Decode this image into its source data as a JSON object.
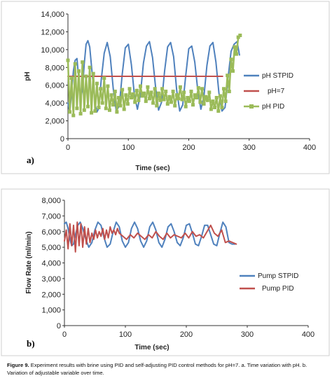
{
  "chart_data": [
    {
      "type": "line",
      "panel_label": "a)",
      "title": "",
      "xlabel": "Time (sec)",
      "ylabel": "pH",
      "xlim": [
        0,
        400
      ],
      "ylim": [
        0,
        14000
      ],
      "xticks": [
        0,
        100,
        200,
        300,
        400
      ],
      "yticks": [
        "0",
        "2,000",
        "4,000",
        "6,000",
        "8,000",
        "10,000",
        "12,000",
        "14,000"
      ],
      "ytick_values": [
        0,
        2000,
        4000,
        6000,
        8000,
        10000,
        12000,
        14000
      ],
      "legend_position": "right",
      "grid": false,
      "series": [
        {
          "name": "pH STPID",
          "color": "#4f81bd",
          "x": [
            0,
            3,
            6,
            9,
            12,
            15,
            18,
            21,
            24,
            27,
            30,
            33,
            36,
            40,
            45,
            48,
            51,
            55,
            60,
            65,
            70,
            75,
            80,
            85,
            90,
            95,
            100,
            105,
            110,
            115,
            120,
            125,
            130,
            135,
            140,
            145,
            150,
            155,
            160,
            165,
            170,
            175,
            180,
            185,
            190,
            195,
            200,
            205,
            210,
            215,
            220,
            225,
            230,
            235,
            240,
            245,
            250,
            255,
            260,
            265,
            270,
            275,
            280,
            284
          ],
          "y": [
            4000,
            3000,
            5200,
            7600,
            8800,
            9000,
            6600,
            4500,
            5500,
            8400,
            10600,
            11000,
            10300,
            7400,
            3900,
            3000,
            3400,
            6500,
            9600,
            10800,
            9200,
            5600,
            3100,
            3700,
            7300,
            10200,
            10600,
            8300,
            4900,
            3300,
            5000,
            8500,
            10400,
            10900,
            9100,
            5800,
            3200,
            4100,
            7600,
            10300,
            10800,
            9200,
            5400,
            3100,
            3800,
            7100,
            10100,
            10400,
            8600,
            5400,
            3300,
            4700,
            8200,
            10400,
            10800,
            8600,
            5100,
            3100,
            3500,
            6800,
            9800,
            10600,
            10900,
            9400
          ]
        },
        {
          "name": "pH=7",
          "color": "#c0504d",
          "x": [
            0,
            256
          ],
          "y": [
            7000,
            7000
          ]
        },
        {
          "name": "pH PID",
          "color": "#9bbb59",
          "x": [
            0,
            3,
            6,
            9,
            12,
            15,
            18,
            21,
            24,
            27,
            30,
            33,
            36,
            39,
            42,
            45,
            48,
            51,
            54,
            57,
            60,
            63,
            66,
            69,
            72,
            75,
            78,
            81,
            84,
            87,
            90,
            93,
            96,
            99,
            102,
            105,
            108,
            111,
            114,
            117,
            120,
            123,
            126,
            129,
            132,
            135,
            138,
            141,
            144,
            147,
            150,
            153,
            156,
            159,
            162,
            165,
            168,
            171,
            174,
            177,
            180,
            183,
            186,
            189,
            192,
            195,
            198,
            201,
            204,
            207,
            210,
            213,
            216,
            219,
            222,
            225,
            228,
            231,
            234,
            237,
            240,
            243,
            246,
            249,
            252,
            255,
            258,
            261,
            264,
            267,
            270,
            273,
            276,
            279,
            282,
            285
          ],
          "y": [
            8800,
            3000,
            6800,
            2600,
            8400,
            3400,
            7600,
            2800,
            8600,
            3200,
            7000,
            3600,
            8000,
            2900,
            7300,
            3100,
            6200,
            3500,
            5600,
            4000,
            6800,
            3400,
            5900,
            3200,
            4900,
            3800,
            5300,
            3000,
            4600,
            3700,
            5500,
            3300,
            4900,
            3900,
            5600,
            4600,
            5000,
            4100,
            5400,
            4300,
            5900,
            4800,
            5100,
            4200,
            5800,
            4500,
            5200,
            4000,
            5600,
            3700,
            5100,
            4300,
            5600,
            4400,
            5300,
            3900,
            4700,
            4100,
            5300,
            3700,
            4900,
            4500,
            5800,
            4400,
            5200,
            3600,
            4600,
            4200,
            5300,
            3800,
            4900,
            4600,
            5700,
            4100,
            5600,
            3900,
            4700,
            4300,
            5200,
            3300,
            4200,
            3500,
            4600,
            3100,
            4800,
            3500,
            5600,
            4200,
            7100,
            5300,
            8900,
            7600,
            10300,
            9500,
            11400,
            11600
          ]
        }
      ]
    },
    {
      "type": "line",
      "panel_label": "b)",
      "title": "",
      "xlabel": "Time (sec)",
      "ylabel": "Flow Rate (ml/min)",
      "xlim": [
        0,
        400
      ],
      "ylim": [
        0,
        8000
      ],
      "xticks": [
        0,
        100,
        200,
        300,
        400
      ],
      "yticks": [
        "0",
        "1,000",
        "2,000",
        "3,000",
        "4,000",
        "5,000",
        "6,000",
        "7,000",
        "8,000"
      ],
      "ytick_values": [
        0,
        1000,
        2000,
        3000,
        4000,
        5000,
        6000,
        7000,
        8000
      ],
      "legend_position": "right",
      "grid": false,
      "series": [
        {
          "name": "Pump STPID",
          "color": "#4f81bd",
          "x": [
            0,
            3,
            6,
            9,
            12,
            15,
            18,
            22,
            26,
            30,
            35,
            40,
            45,
            50,
            55,
            60,
            65,
            70,
            75,
            80,
            85,
            90,
            95,
            100,
            105,
            110,
            115,
            120,
            125,
            130,
            135,
            140,
            145,
            150,
            155,
            160,
            165,
            170,
            175,
            180,
            185,
            190,
            195,
            200,
            205,
            210,
            215,
            220,
            225,
            230,
            235,
            240,
            245,
            250,
            255,
            260,
            265,
            270,
            275,
            280
          ],
          "y": [
            6500,
            6600,
            6200,
            5500,
            5100,
            5200,
            5800,
            6400,
            6600,
            6200,
            5500,
            5000,
            5300,
            6100,
            6600,
            6400,
            5600,
            5000,
            5200,
            6000,
            6600,
            6300,
            5400,
            5000,
            5300,
            6200,
            6600,
            6200,
            5400,
            5000,
            5400,
            6300,
            6600,
            6100,
            5300,
            5000,
            5500,
            6300,
            6500,
            6000,
            5300,
            5100,
            5600,
            6400,
            6500,
            5900,
            5200,
            5100,
            5700,
            6400,
            6400,
            5800,
            5200,
            5100,
            5900,
            6600,
            6300,
            5300,
            5200,
            5200
          ]
        },
        {
          "name": "Pump PID",
          "color": "#c0504d",
          "x": [
            0,
            3,
            6,
            9,
            12,
            15,
            18,
            21,
            24,
            27,
            30,
            33,
            36,
            39,
            42,
            45,
            48,
            51,
            54,
            57,
            60,
            63,
            66,
            69,
            72,
            75,
            78,
            81,
            84,
            87,
            90,
            96,
            102,
            108,
            114,
            120,
            126,
            132,
            138,
            144,
            150,
            156,
            162,
            168,
            174,
            180,
            186,
            192,
            198,
            204,
            210,
            216,
            222,
            228,
            234,
            240,
            246,
            252,
            258,
            264,
            270,
            276,
            282
          ],
          "y": [
            5400,
            6100,
            4900,
            6500,
            5100,
            6400,
            4700,
            6600,
            5100,
            6500,
            5000,
            6300,
            5200,
            6200,
            5300,
            5900,
            5500,
            6100,
            5600,
            6000,
            5700,
            6200,
            5500,
            6100,
            5600,
            6300,
            5900,
            6100,
            5800,
            6200,
            5900,
            5700,
            5500,
            5800,
            5600,
            5900,
            5700,
            5500,
            5800,
            5600,
            6000,
            5700,
            5500,
            5900,
            5600,
            5800,
            5700,
            5600,
            5900,
            5600,
            6000,
            5700,
            5800,
            5600,
            6000,
            6400,
            5900,
            5700,
            6100,
            5300,
            5400,
            5300,
            5200
          ]
        }
      ]
    }
  ],
  "caption": {
    "label": "Figure 9.",
    "text": " Experiment results with brine using PID and self-adjusting PID control methods for pH=7. a. Time variation with pH. b. Variation of adjustable variable over time."
  }
}
